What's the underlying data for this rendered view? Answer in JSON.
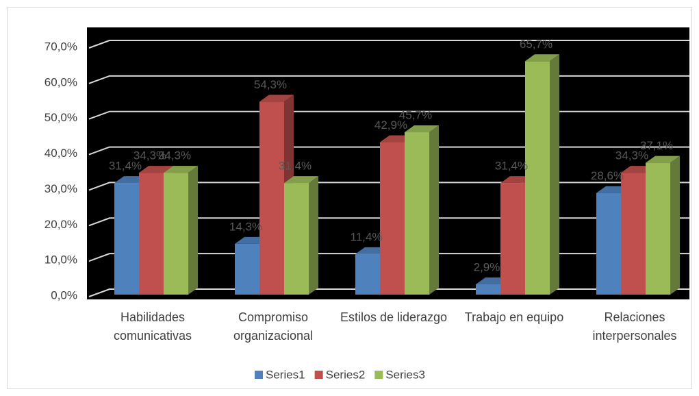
{
  "chart_data": {
    "type": "bar3d",
    "categories": [
      "Habilidades comunicativas",
      "Compromiso organizacional",
      "Estilos de liderazgo",
      "Trabajo en equipo",
      "Relaciones interpersonales"
    ],
    "series": [
      {
        "name": "Series1",
        "color": "#4f81bd",
        "values": [
          31.4,
          14.3,
          11.4,
          2.9,
          28.6
        ],
        "value_labels": [
          "31,4%",
          "14,3%",
          "11,4%",
          "2,9%",
          "28,6%"
        ]
      },
      {
        "name": "Series2",
        "color": "#c0504d",
        "values": [
          34.3,
          54.3,
          42.9,
          31.4,
          34.3
        ],
        "value_labels": [
          "34,3%",
          "54,3%",
          "42,9%",
          "31,4%",
          "34,3%"
        ]
      },
      {
        "name": "Series3",
        "color": "#9bbb59",
        "values": [
          34.3,
          31.4,
          45.7,
          65.7,
          37.1
        ],
        "value_labels": [
          "34,3%",
          "31,4%",
          "45,7%",
          "65,7%",
          "37,1%"
        ]
      }
    ],
    "ylim": [
      0,
      70
    ],
    "yticks": [
      {
        "value": 0,
        "label": "0,0%"
      },
      {
        "value": 10,
        "label": "10,0%"
      },
      {
        "value": 20,
        "label": "20,0%"
      },
      {
        "value": 30,
        "label": "30,0%"
      },
      {
        "value": 40,
        "label": "40,0%"
      },
      {
        "value": 50,
        "label": "50,0%"
      },
      {
        "value": 60,
        "label": "60,0%"
      },
      {
        "value": 70,
        "label": "70,0%"
      }
    ],
    "grid": true,
    "legend": "bottom"
  }
}
